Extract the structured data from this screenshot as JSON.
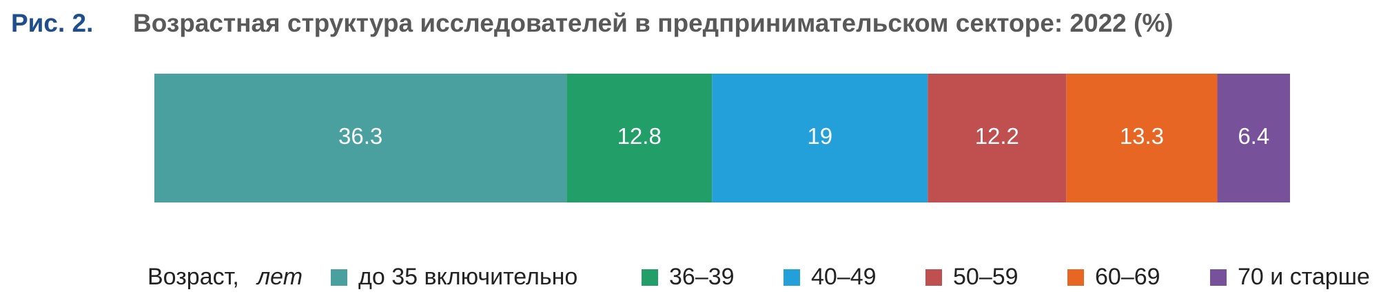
{
  "chart_data": {
    "type": "bar",
    "stacked": true,
    "orientation": "horizontal",
    "figure_label": "Рис. 2.",
    "title": "Возрастная структура исследователей в предпринимательском секторе: 2022 (%)",
    "legend_title": "Возраст,",
    "legend_title_unit": "лет",
    "xlim": [
      0,
      100
    ],
    "series": [
      {
        "name": "до 35 включительно",
        "color": "#4a9f9f",
        "values": [
          36.3
        ]
      },
      {
        "name": "36–39",
        "color": "#229e68",
        "values": [
          12.8
        ]
      },
      {
        "name": "40–49",
        "color": "#239fda",
        "values": [
          19.0
        ]
      },
      {
        "name": "50–59",
        "color": "#c05050",
        "values": [
          12.2
        ]
      },
      {
        "name": "60–69",
        "color": "#e86624",
        "values": [
          13.3
        ]
      },
      {
        "name": "70 и старше",
        "color": "#77529a",
        "values": [
          6.4
        ]
      }
    ]
  }
}
